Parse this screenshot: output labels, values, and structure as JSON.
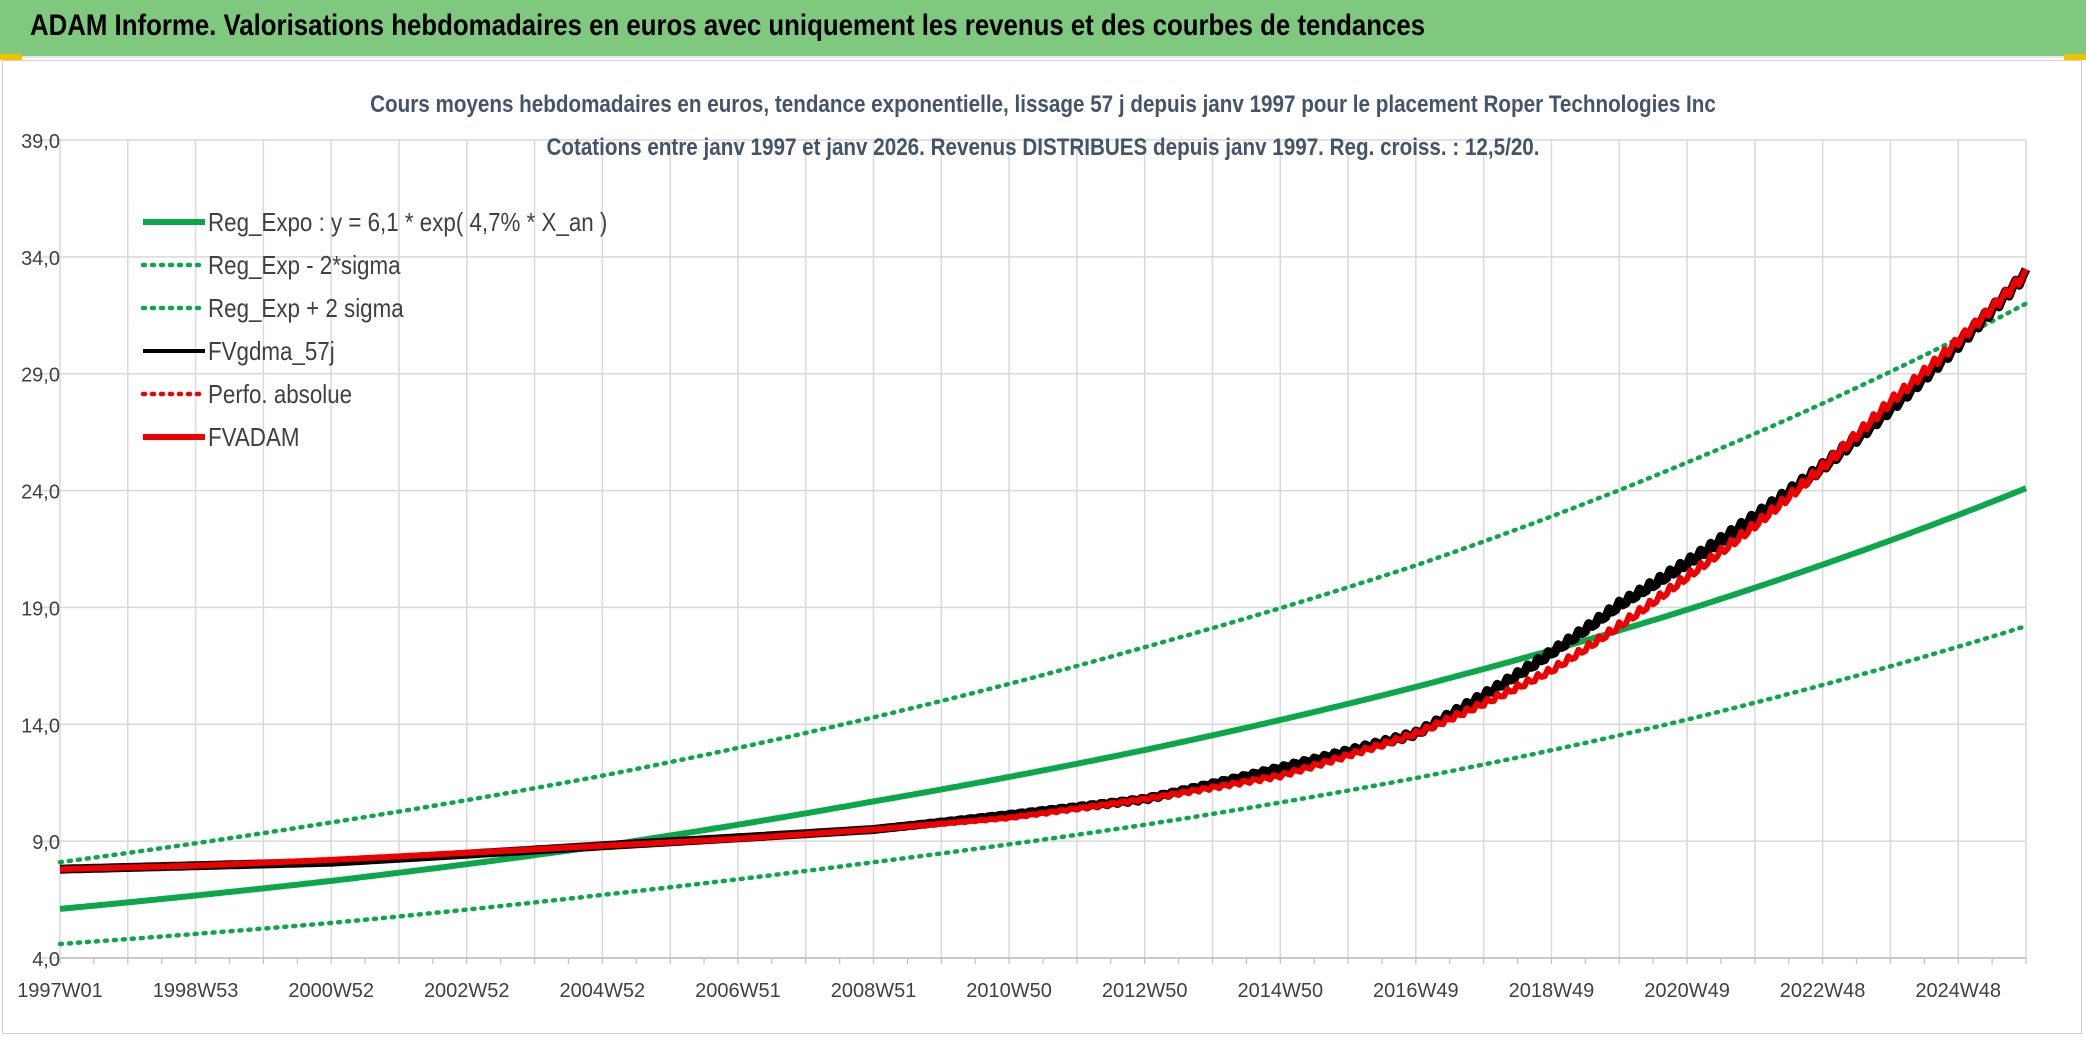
{
  "header": {
    "title": "ADAM Informe. Valorisations hebdomadaires en euros avec uniquement les revenus et des courbes de tendances"
  },
  "colors": {
    "header_bg": "#7fc97f",
    "reg_green": "#0aa84a",
    "fvadam_red": "#ee0000",
    "fvgdma_black": "#000000",
    "grid": "#d9d9d9",
    "axis_text": "#404040",
    "title_text": "#44546a"
  },
  "chart_data": {
    "type": "line",
    "title_line1": "Cours moyens hebdomadaires en euros, tendance exponentielle, lissage 57 j depuis janv 1997 pour le placement Roper Technologies Inc",
    "title_line2": "Cotations entre janv 1997 et janv 2026. Revenus DISTRIBUES depuis janv 1997. Reg. croiss. : 12,5/20.",
    "xlabel": "",
    "ylabel": "",
    "x_range_years": [
      1997.0,
      2026.0
    ],
    "ylim": [
      4.0,
      39.0
    ],
    "y_ticks": [
      "4,0",
      "9,0",
      "14,0",
      "19,0",
      "24,0",
      "29,0",
      "34,0",
      "39,0"
    ],
    "y_tick_values": [
      4,
      9,
      14,
      19,
      24,
      29,
      34,
      39
    ],
    "x_ticks": [
      {
        "label": "1997W01",
        "year": 1997.0
      },
      {
        "label": "1998W53",
        "year": 1999.0
      },
      {
        "label": "2000W52",
        "year": 2001.0
      },
      {
        "label": "2002W52",
        "year": 2003.0
      },
      {
        "label": "2004W52",
        "year": 2005.0
      },
      {
        "label": "2006W51",
        "year": 2007.0
      },
      {
        "label": "2008W51",
        "year": 2009.0
      },
      {
        "label": "2010W50",
        "year": 2011.0
      },
      {
        "label": "2012W50",
        "year": 2013.0
      },
      {
        "label": "2014W50",
        "year": 2015.0
      },
      {
        "label": "2016W49",
        "year": 2017.0
      },
      {
        "label": "2018W49",
        "year": 2019.0
      },
      {
        "label": "2020W49",
        "year": 2021.0
      },
      {
        "label": "2022W48",
        "year": 2023.0
      },
      {
        "label": "2024W48",
        "year": 2025.0
      }
    ],
    "legend_position": "top-left",
    "series": [
      {
        "name": "Reg_Expo : y = 6,1 * exp( 4,7% *  X_an )",
        "style": "solid-thick",
        "color": "#0aa84a",
        "x": [
          1997,
          2001,
          2005,
          2009,
          2013,
          2017,
          2021,
          2026
        ],
        "y": [
          6.1,
          7.3,
          8.8,
          10.7,
          12.9,
          15.6,
          18.9,
          24.1
        ]
      },
      {
        "name": "Reg_Exp - 2*sigma",
        "style": "dotted",
        "color": "#0aa84a",
        "x": [
          1997,
          2001,
          2005,
          2009,
          2013,
          2017,
          2021,
          2026
        ],
        "y": [
          4.6,
          5.5,
          6.7,
          8.1,
          9.7,
          11.7,
          14.2,
          18.2
        ]
      },
      {
        "name": "Reg_Exp + 2 sigma",
        "style": "dotted",
        "color": "#0aa84a",
        "x": [
          1997,
          2001,
          2005,
          2009,
          2013,
          2017,
          2021,
          2026
        ],
        "y": [
          8.1,
          9.8,
          11.8,
          14.3,
          17.3,
          20.8,
          25.2,
          32.0
        ]
      },
      {
        "name": "FVgdma_57j",
        "style": "solid",
        "color": "#000000",
        "x": [
          1997,
          2001,
          2005,
          2009,
          2013,
          2017,
          2020,
          2023,
          2026
        ],
        "y": [
          7.8,
          8.1,
          8.8,
          9.5,
          10.8,
          13.6,
          19.1,
          25.0,
          33.3
        ]
      },
      {
        "name": "Perfo. absolue",
        "style": "dotted",
        "color": "#ee0000",
        "x": [
          1997,
          2001,
          2005,
          2009,
          2013,
          2017,
          2020,
          2023,
          2026
        ],
        "y": [
          7.8,
          8.1,
          8.8,
          9.5,
          10.8,
          13.6,
          19.1,
          25.0,
          33.3
        ]
      },
      {
        "name": "FVADAM",
        "style": "solid-thick",
        "color": "#ee0000",
        "x": [
          1997,
          1999,
          2001,
          2003,
          2005,
          2007,
          2009,
          2011,
          2013,
          2015,
          2017,
          2019,
          2020,
          2021,
          2022,
          2023,
          2024,
          2025,
          2026
        ],
        "y": [
          7.8,
          7.95,
          8.2,
          8.5,
          8.8,
          9.1,
          9.5,
          10.0,
          10.8,
          11.8,
          13.6,
          16.3,
          18.2,
          20.3,
          22.5,
          25.0,
          27.8,
          30.4,
          33.3
        ]
      }
    ]
  }
}
